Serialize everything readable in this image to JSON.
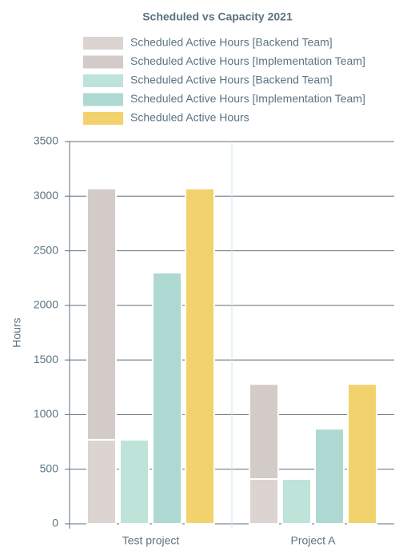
{
  "chart_data": {
    "type": "bar",
    "title": "Scheduled vs Capacity 2021",
    "y_label": "Hours",
    "categories": [
      "Test project",
      "Project A"
    ],
    "series": [
      {
        "name": "Scheduled Active Hours [Backend Team]",
        "color": "#dcd4d1",
        "values": [
          770,
          410
        ],
        "stacked": true
      },
      {
        "name": "Scheduled Active Hours [Implementation Team]",
        "color": "#d3cbc8",
        "values": [
          2300,
          870
        ],
        "stacked": true
      },
      {
        "name": "Scheduled Active Hours [Backend Team]",
        "color": "#bee4d9",
        "values": [
          770,
          410
        ]
      },
      {
        "name": "Scheduled Active Hours [Implementation Team]",
        "color": "#aed9d3",
        "values": [
          2300,
          870
        ]
      },
      {
        "name": "Scheduled Active Hours",
        "color": "#f2d26c",
        "values": [
          3070,
          1280
        ]
      }
    ],
    "ylim": [
      0,
      3500
    ],
    "yticks": [
      0,
      500,
      1000,
      1500,
      2000,
      2500,
      3000,
      3500
    ],
    "grid": true
  }
}
